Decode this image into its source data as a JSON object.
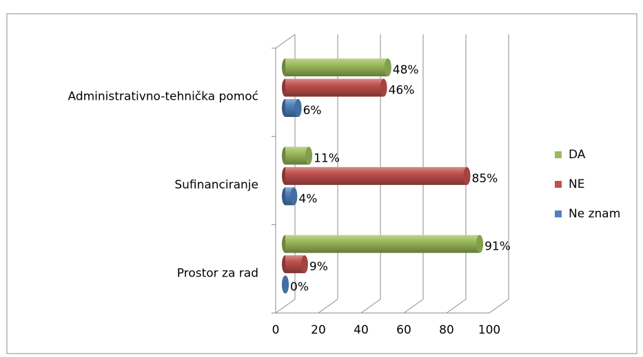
{
  "chart_data": {
    "type": "bar",
    "orientation": "horizontal",
    "style": "3d-cylinder",
    "categories": [
      "Administrativno-tehnička pomoć",
      "Sufinanciranje",
      "Prostor za rad"
    ],
    "series": [
      {
        "name": "DA",
        "color": "#9bbb59",
        "values": [
          48,
          11,
          91
        ],
        "value_labels": [
          "48%",
          "11%",
          "91%"
        ]
      },
      {
        "name": "NE",
        "color": "#c0504d",
        "values": [
          46,
          85,
          9
        ],
        "value_labels": [
          "46%",
          "85%",
          "9%"
        ]
      },
      {
        "name": "Ne znam",
        "color": "#4f81bd",
        "values": [
          6,
          4,
          0
        ],
        "value_labels": [
          "6%",
          "4%",
          "0%"
        ]
      }
    ],
    "xlim": [
      0,
      100
    ],
    "xticks": [
      0,
      20,
      40,
      60,
      80,
      100
    ],
    "grid": true,
    "legend": "right"
  }
}
